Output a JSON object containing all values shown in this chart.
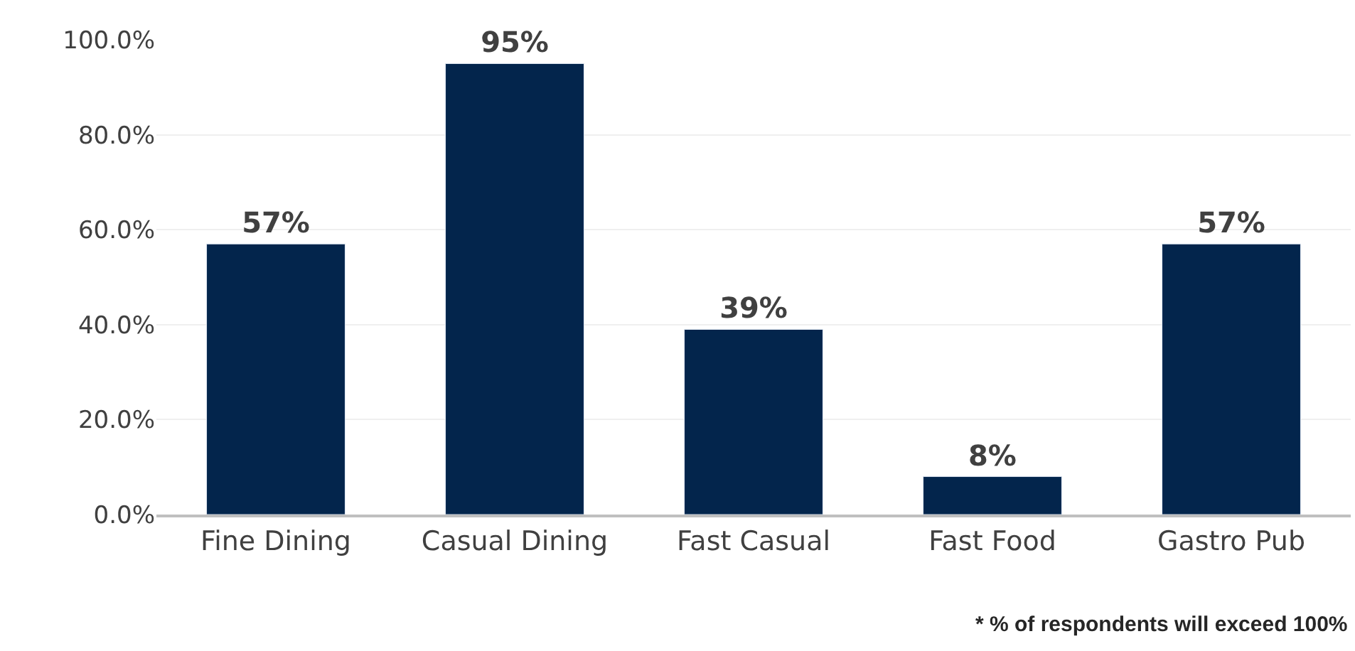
{
  "chart_data": {
    "type": "bar",
    "categories": [
      "Fine Dining",
      "Casual Dining",
      "Fast Casual",
      "Fast Food",
      "Gastro Pub"
    ],
    "values": [
      57,
      95,
      39,
      8,
      57
    ],
    "value_labels": [
      "57%",
      "95%",
      "39%",
      "8%",
      "57%"
    ],
    "color": "#03254c",
    "ylim": [
      0,
      100
    ],
    "yticks": [
      {
        "value": 0,
        "label": "0.0%"
      },
      {
        "value": 20,
        "label": "20.0%"
      },
      {
        "value": 40,
        "label": "40.0%"
      },
      {
        "value": 60,
        "label": "60.0%"
      },
      {
        "value": 80,
        "label": "80.0%"
      },
      {
        "value": 100,
        "label": "100.0%"
      }
    ],
    "grid": "y",
    "annotations": [
      "* % of respondents will exceed 100%"
    ]
  }
}
